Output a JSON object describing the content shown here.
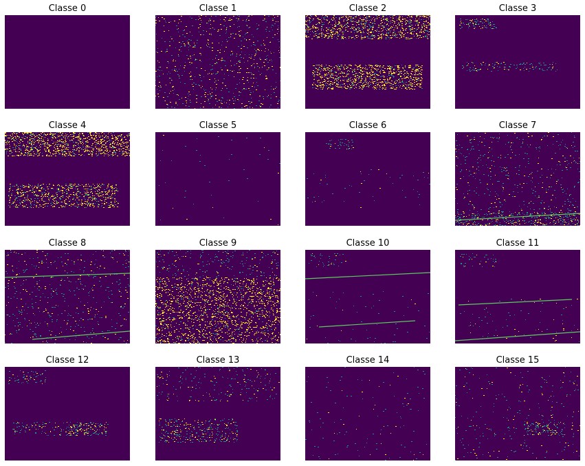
{
  "panels": [
    {
      "title": "Classe 0"
    },
    {
      "title": "Classe 1"
    },
    {
      "title": "Classe 2"
    },
    {
      "title": "Classe 3"
    },
    {
      "title": "Classe 4"
    },
    {
      "title": "Classe 5"
    },
    {
      "title": "Classe 6"
    },
    {
      "title": "Classe 7"
    },
    {
      "title": "Classe 8"
    },
    {
      "title": "Classe 9"
    },
    {
      "title": "Classe 10"
    },
    {
      "title": "Classe 11"
    },
    {
      "title": "Classe 12"
    },
    {
      "title": "Classe 13"
    },
    {
      "title": "Classe 14"
    },
    {
      "title": "Classe 15"
    }
  ],
  "colors": {
    "background": "#440154",
    "pixel_high": "#fde725",
    "pixel_mid": "#21918c",
    "pixel_low": "#5ec962"
  }
}
